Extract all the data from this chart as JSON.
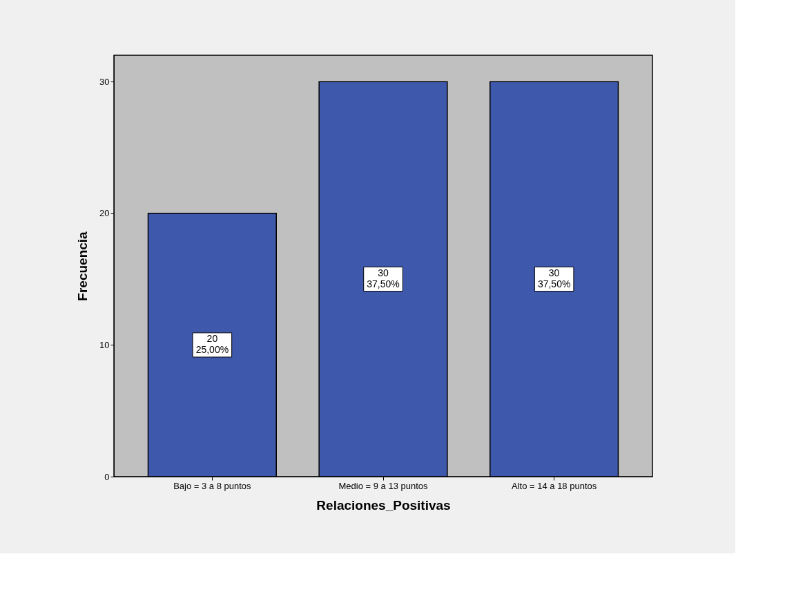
{
  "chart_data": {
    "type": "bar",
    "xlabel": "Relaciones_Positivas",
    "ylabel": "Frecuencia",
    "categories": [
      "Bajo = 3 a 8 puntos",
      "Medio = 9 a 13 puntos",
      "Alto = 14 a 18 puntos"
    ],
    "values": [
      20,
      30,
      30
    ],
    "color": "#3e58ab",
    "value_labels": [
      "20\n25,00%",
      "30\n37,50%",
      "30\n37,50%"
    ],
    "ylim": [
      0,
      32
    ],
    "yticks": [
      0,
      10,
      20,
      30
    ],
    "grid": false
  }
}
